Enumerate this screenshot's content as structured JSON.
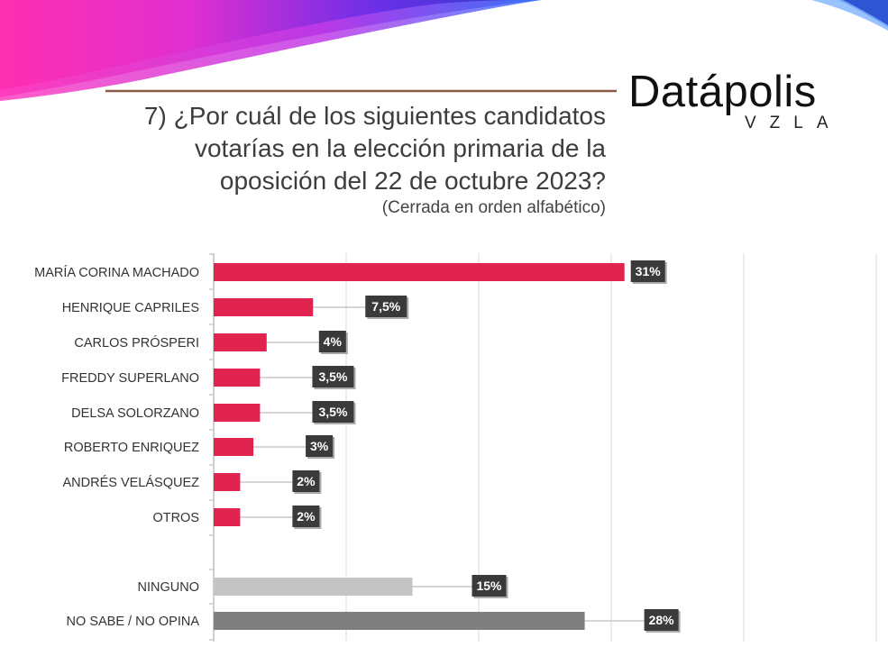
{
  "question": {
    "line1": "7) ¿Por cuál de los siguientes candidatos",
    "line2": "votarías en la elección primaria de la",
    "line3": "oposición del 22 de octubre 2023?",
    "note": "(Cerrada en orden alfabético)"
  },
  "logo": {
    "main": "Datápolis",
    "sub": "VZLA"
  },
  "colors": {
    "candidate": "#e0244f",
    "ninguno": "#c4c4c4",
    "nsno": "#7f7f7f",
    "label_box": "#3a3a3a",
    "rule": "#8b5a47"
  },
  "chart_data": {
    "type": "bar",
    "orientation": "horizontal",
    "categories": [
      "MARÍA CORINA MACHADO",
      "HENRIQUE CAPRILES",
      "CARLOS PRÓSPERI",
      "FREDDY SUPERLANO",
      "DELSA SOLORZANO",
      "ROBERTO ENRIQUEZ",
      "ANDRÉS VELÁSQUEZ",
      "OTROS",
      "NINGUNO",
      "NO SABE / NO OPINA"
    ],
    "values": [
      31,
      7.5,
      4,
      3.5,
      3.5,
      3,
      2,
      2,
      15,
      28
    ],
    "labels": [
      "31%",
      "7,5%",
      "4%",
      "3,5%",
      "3,5%",
      "3%",
      "2%",
      "2%",
      "15%",
      "28%"
    ],
    "groups": [
      "candidate",
      "candidate",
      "candidate",
      "candidate",
      "candidate",
      "candidate",
      "candidate",
      "candidate",
      "ninguno",
      "nsno"
    ],
    "xlim": [
      0,
      50
    ],
    "grid": true
  }
}
